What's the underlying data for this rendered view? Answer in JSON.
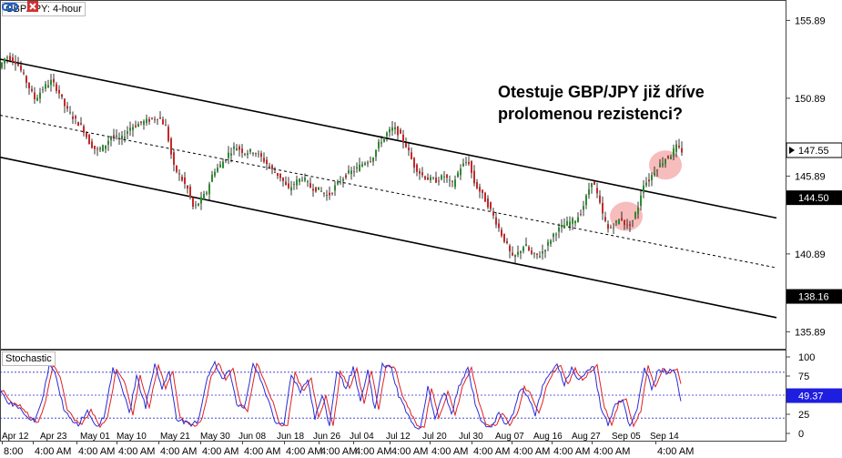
{
  "window": {
    "title": "GBP/JPY: 4-hour"
  },
  "indicator": {
    "label": "Stochastic"
  },
  "annotation": {
    "line1": "Otestuje GBP/JPY již dříve",
    "line2": "prolomenou rezistenci?"
  },
  "colors": {
    "bull": "#2e8b2e",
    "bear": "#c62828",
    "wick": "#000000",
    "highlight": "#f4a6a6",
    "stoch_k": "#2b2bd6",
    "stoch_d": "#e02020",
    "stoch_current_bg": "#1e1ee0",
    "price_tag_bg": "#000000"
  },
  "chart_data": [
    {
      "type": "candlestick",
      "title": "GBP/JPY: 4-hour",
      "ylim": [
        134.8,
        157.2
      ],
      "price_ticks": [
        155.89,
        150.89,
        145.89,
        140.89,
        135.89
      ],
      "marked_levels": [
        {
          "value": 147.55,
          "style": "current"
        },
        {
          "value": 144.5,
          "style": "level"
        },
        {
          "value": 138.16,
          "style": "level"
        }
      ],
      "date_labels": [
        "Apr 12",
        "Apr 23",
        "May 01",
        "May 10",
        "May 21",
        "May 30",
        "Jun 08",
        "Jun 18",
        "Jun 26",
        "Jul 04",
        "Jul 12",
        "Jul 20",
        "Jul 30",
        "Aug 07",
        "Aug 16",
        "Aug 27",
        "Sep 05",
        "Sep 14"
      ],
      "time_labels": [
        "8:00",
        "4:00 AM",
        "4:00 AM",
        "4:00 AM",
        "4:00 AM",
        "4:00 AM",
        "4:00 AM",
        "4:00 AM",
        "4:00 AM",
        "4:00 AM",
        "4:00 AM",
        "4:00 AM",
        "4:00 AM",
        "4:00 AM",
        "4:00 AM",
        "4:00 AM",
        "4:00 AM"
      ],
      "price_path": [
        [
          0,
          152.8
        ],
        [
          8,
          153.6
        ],
        [
          20,
          153.2
        ],
        [
          30,
          152.0
        ],
        [
          40,
          150.8
        ],
        [
          48,
          151.5
        ],
        [
          58,
          152.0
        ],
        [
          66,
          151.3
        ],
        [
          74,
          150.2
        ],
        [
          84,
          149.5
        ],
        [
          92,
          149.0
        ],
        [
          100,
          148.0
        ],
        [
          108,
          147.5
        ],
        [
          116,
          147.8
        ],
        [
          124,
          148.5
        ],
        [
          134,
          148.2
        ],
        [
          144,
          149.0
        ],
        [
          156,
          149.3
        ],
        [
          166,
          149.5
        ],
        [
          176,
          149.7
        ],
        [
          184,
          149.0
        ],
        [
          192,
          146.5
        ],
        [
          200,
          145.8
        ],
        [
          208,
          145.0
        ],
        [
          214,
          143.8
        ],
        [
          220,
          144.2
        ],
        [
          228,
          144.8
        ],
        [
          236,
          146.2
        ],
        [
          244,
          146.6
        ],
        [
          252,
          147.3
        ],
        [
          260,
          147.8
        ],
        [
          270,
          147.4
        ],
        [
          280,
          147.5
        ],
        [
          290,
          147.0
        ],
        [
          300,
          146.3
        ],
        [
          310,
          145.8
        ],
        [
          318,
          145.0
        ],
        [
          326,
          145.5
        ],
        [
          334,
          145.8
        ],
        [
          342,
          145.2
        ],
        [
          352,
          145.0
        ],
        [
          362,
          144.6
        ],
        [
          372,
          145.4
        ],
        [
          382,
          146.0
        ],
        [
          392,
          146.3
        ],
        [
          402,
          146.8
        ],
        [
          410,
          147.0
        ],
        [
          418,
          148.0
        ],
        [
          426,
          148.6
        ],
        [
          434,
          149.0
        ],
        [
          440,
          148.6
        ],
        [
          448,
          147.8
        ],
        [
          456,
          146.6
        ],
        [
          464,
          146.0
        ],
        [
          472,
          145.7
        ],
        [
          480,
          145.6
        ],
        [
          490,
          145.9
        ],
        [
          498,
          145.3
        ],
        [
          508,
          146.5
        ],
        [
          516,
          146.9
        ],
        [
          522,
          145.5
        ],
        [
          530,
          144.8
        ],
        [
          538,
          144.0
        ],
        [
          546,
          143.0
        ],
        [
          552,
          142.2
        ],
        [
          558,
          141.5
        ],
        [
          564,
          140.6
        ],
        [
          570,
          140.9
        ],
        [
          578,
          141.5
        ],
        [
          586,
          140.8
        ],
        [
          594,
          140.8
        ],
        [
          602,
          141.4
        ],
        [
          610,
          142.2
        ],
        [
          618,
          142.6
        ],
        [
          626,
          142.9
        ],
        [
          634,
          143.1
        ],
        [
          640,
          143.6
        ],
        [
          646,
          144.6
        ],
        [
          652,
          145.7
        ],
        [
          658,
          144.6
        ],
        [
          664,
          143.3
        ],
        [
          670,
          142.4
        ],
        [
          676,
          142.8
        ],
        [
          684,
          143.2
        ],
        [
          690,
          142.6
        ],
        [
          696,
          143.0
        ],
        [
          702,
          143.8
        ],
        [
          708,
          145.4
        ],
        [
          714,
          145.6
        ],
        [
          720,
          146.2
        ],
        [
          726,
          146.6
        ],
        [
          732,
          147.0
        ],
        [
          738,
          147.2
        ],
        [
          744,
          147.8
        ],
        [
          750,
          147.5
        ]
      ],
      "channel_lines": [
        {
          "from": [
            0,
            153.4
          ],
          "to": [
            853,
            143.2
          ],
          "style": "solid"
        },
        {
          "from": [
            0,
            149.8
          ],
          "to": [
            853,
            140.0
          ],
          "style": "dashed"
        },
        {
          "from": [
            0,
            147.1
          ],
          "to": [
            853,
            136.8
          ],
          "style": "solid"
        }
      ],
      "highlights": [
        {
          "x": 688,
          "price": 143.3
        },
        {
          "x": 731,
          "price": 146.6
        }
      ]
    },
    {
      "type": "line",
      "title": "Stochastic",
      "ylim": [
        0,
        100
      ],
      "ticks": [
        100,
        75,
        50,
        25,
        0
      ],
      "dotted_levels": [
        80,
        50,
        20
      ],
      "current_value": 49.37,
      "k_path": [
        [
          0,
          55
        ],
        [
          10,
          40
        ],
        [
          20,
          35
        ],
        [
          30,
          20
        ],
        [
          38,
          15
        ],
        [
          46,
          40
        ],
        [
          54,
          90
        ],
        [
          62,
          75
        ],
        [
          70,
          30
        ],
        [
          78,
          18
        ],
        [
          86,
          12
        ],
        [
          96,
          30
        ],
        [
          106,
          10
        ],
        [
          114,
          20
        ],
        [
          124,
          85
        ],
        [
          132,
          70
        ],
        [
          142,
          25
        ],
        [
          150,
          75
        ],
        [
          160,
          35
        ],
        [
          170,
          90
        ],
        [
          178,
          60
        ],
        [
          186,
          80
        ],
        [
          194,
          20
        ],
        [
          202,
          15
        ],
        [
          210,
          10
        ],
        [
          218,
          18
        ],
        [
          228,
          75
        ],
        [
          236,
          92
        ],
        [
          244,
          70
        ],
        [
          252,
          85
        ],
        [
          260,
          40
        ],
        [
          268,
          30
        ],
        [
          278,
          92
        ],
        [
          286,
          70
        ],
        [
          296,
          40
        ],
        [
          304,
          10
        ],
        [
          312,
          12
        ],
        [
          320,
          78
        ],
        [
          330,
          55
        ],
        [
          338,
          72
        ],
        [
          346,
          20
        ],
        [
          354,
          50
        ],
        [
          362,
          10
        ],
        [
          370,
          82
        ],
        [
          380,
          60
        ],
        [
          388,
          85
        ],
        [
          396,
          40
        ],
        [
          404,
          82
        ],
        [
          412,
          30
        ],
        [
          420,
          90
        ],
        [
          430,
          85
        ],
        [
          438,
          50
        ],
        [
          446,
          30
        ],
        [
          454,
          10
        ],
        [
          462,
          8
        ],
        [
          470,
          60
        ],
        [
          478,
          20
        ],
        [
          488,
          55
        ],
        [
          496,
          25
        ],
        [
          504,
          60
        ],
        [
          514,
          85
        ],
        [
          522,
          40
        ],
        [
          530,
          12
        ],
        [
          540,
          10
        ],
        [
          548,
          25
        ],
        [
          556,
          12
        ],
        [
          564,
          25
        ],
        [
          572,
          60
        ],
        [
          580,
          50
        ],
        [
          588,
          25
        ],
        [
          596,
          60
        ],
        [
          604,
          80
        ],
        [
          612,
          88
        ],
        [
          620,
          65
        ],
        [
          628,
          85
        ],
        [
          636,
          70
        ],
        [
          644,
          80
        ],
        [
          652,
          88
        ],
        [
          660,
          35
        ],
        [
          668,
          12
        ],
        [
          676,
          40
        ],
        [
          684,
          45
        ],
        [
          692,
          8
        ],
        [
          700,
          30
        ],
        [
          708,
          88
        ],
        [
          716,
          60
        ],
        [
          724,
          85
        ],
        [
          732,
          80
        ],
        [
          740,
          85
        ],
        [
          748,
          45
        ]
      ]
    }
  ]
}
